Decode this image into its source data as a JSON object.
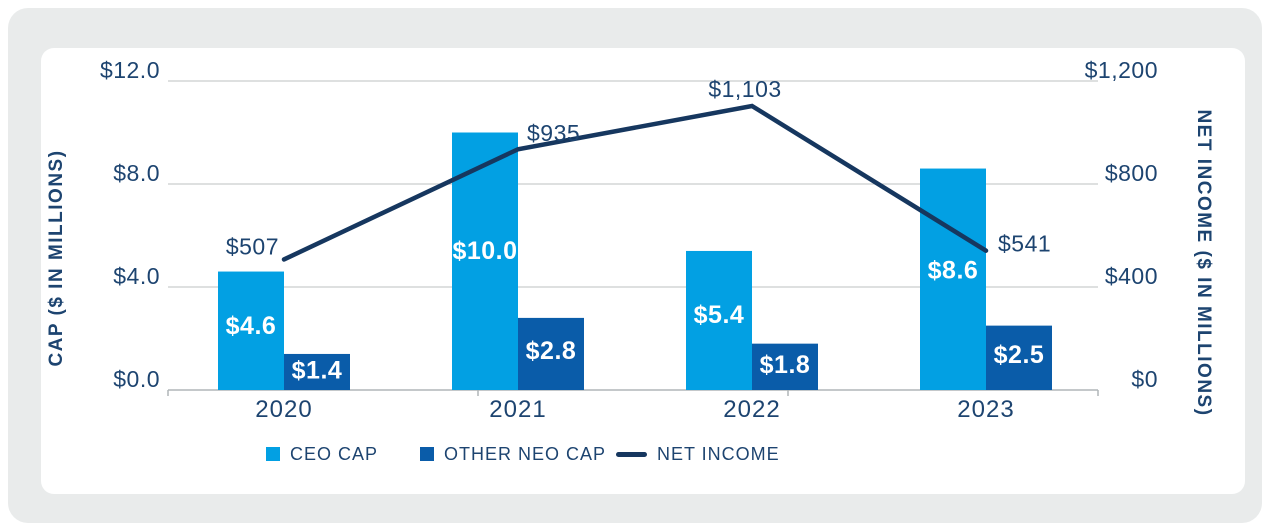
{
  "colors": {
    "panel_bg": "#E9EBEB",
    "card_bg": "#FFFFFF",
    "ceo_cap_blue": "#02A0E3",
    "other_neo_cap_blue": "#0A5CA9",
    "net_income_navy": "#16375F",
    "text_navy": "#1D4470",
    "gridline_gray": "#C9CDCE",
    "axisline_gray": "#B0B6B8"
  },
  "chart_data": {
    "type": "bar",
    "subtype": "grouped-bars-with-line-overlay",
    "categories": [
      "2020",
      "2021",
      "2022",
      "2023"
    ],
    "series": [
      {
        "name": "CEO CAP",
        "type": "bar",
        "axis": "left",
        "color": "#02A0E3",
        "values": [
          4.6,
          10.0,
          5.4,
          8.6
        ],
        "labels": [
          "$4.6",
          "$10.0",
          "$5.4",
          "$8.6"
        ]
      },
      {
        "name": "OTHER NEO CAP",
        "type": "bar",
        "axis": "left",
        "color": "#0A5CA9",
        "values": [
          1.4,
          2.8,
          1.8,
          2.5
        ],
        "labels": [
          "$1.4",
          "$2.8",
          "$1.8",
          "$2.5"
        ]
      },
      {
        "name": "NET INCOME",
        "type": "line",
        "axis": "right",
        "color": "#16375F",
        "values": [
          507,
          935,
          1103,
          541
        ],
        "labels": [
          "$507",
          "$935",
          "$1,103",
          "$541"
        ]
      }
    ],
    "left_axis": {
      "title": "CAP ($ IN MILLIONS)",
      "min": 0,
      "max": 12,
      "tick_values": [
        12,
        8,
        4,
        0
      ],
      "tick_labels": [
        "$12.0",
        "$8.0",
        "$4.0",
        "$0.0"
      ]
    },
    "right_axis": {
      "title": "NET INCOME ($ IN MILLIONS)",
      "min": 0,
      "max": 1200,
      "tick_values": [
        1200,
        800,
        400,
        0
      ],
      "tick_labels": [
        "$1,200",
        "$800",
        "$400",
        "$0"
      ]
    },
    "grid": true,
    "legend_position": "bottom"
  }
}
